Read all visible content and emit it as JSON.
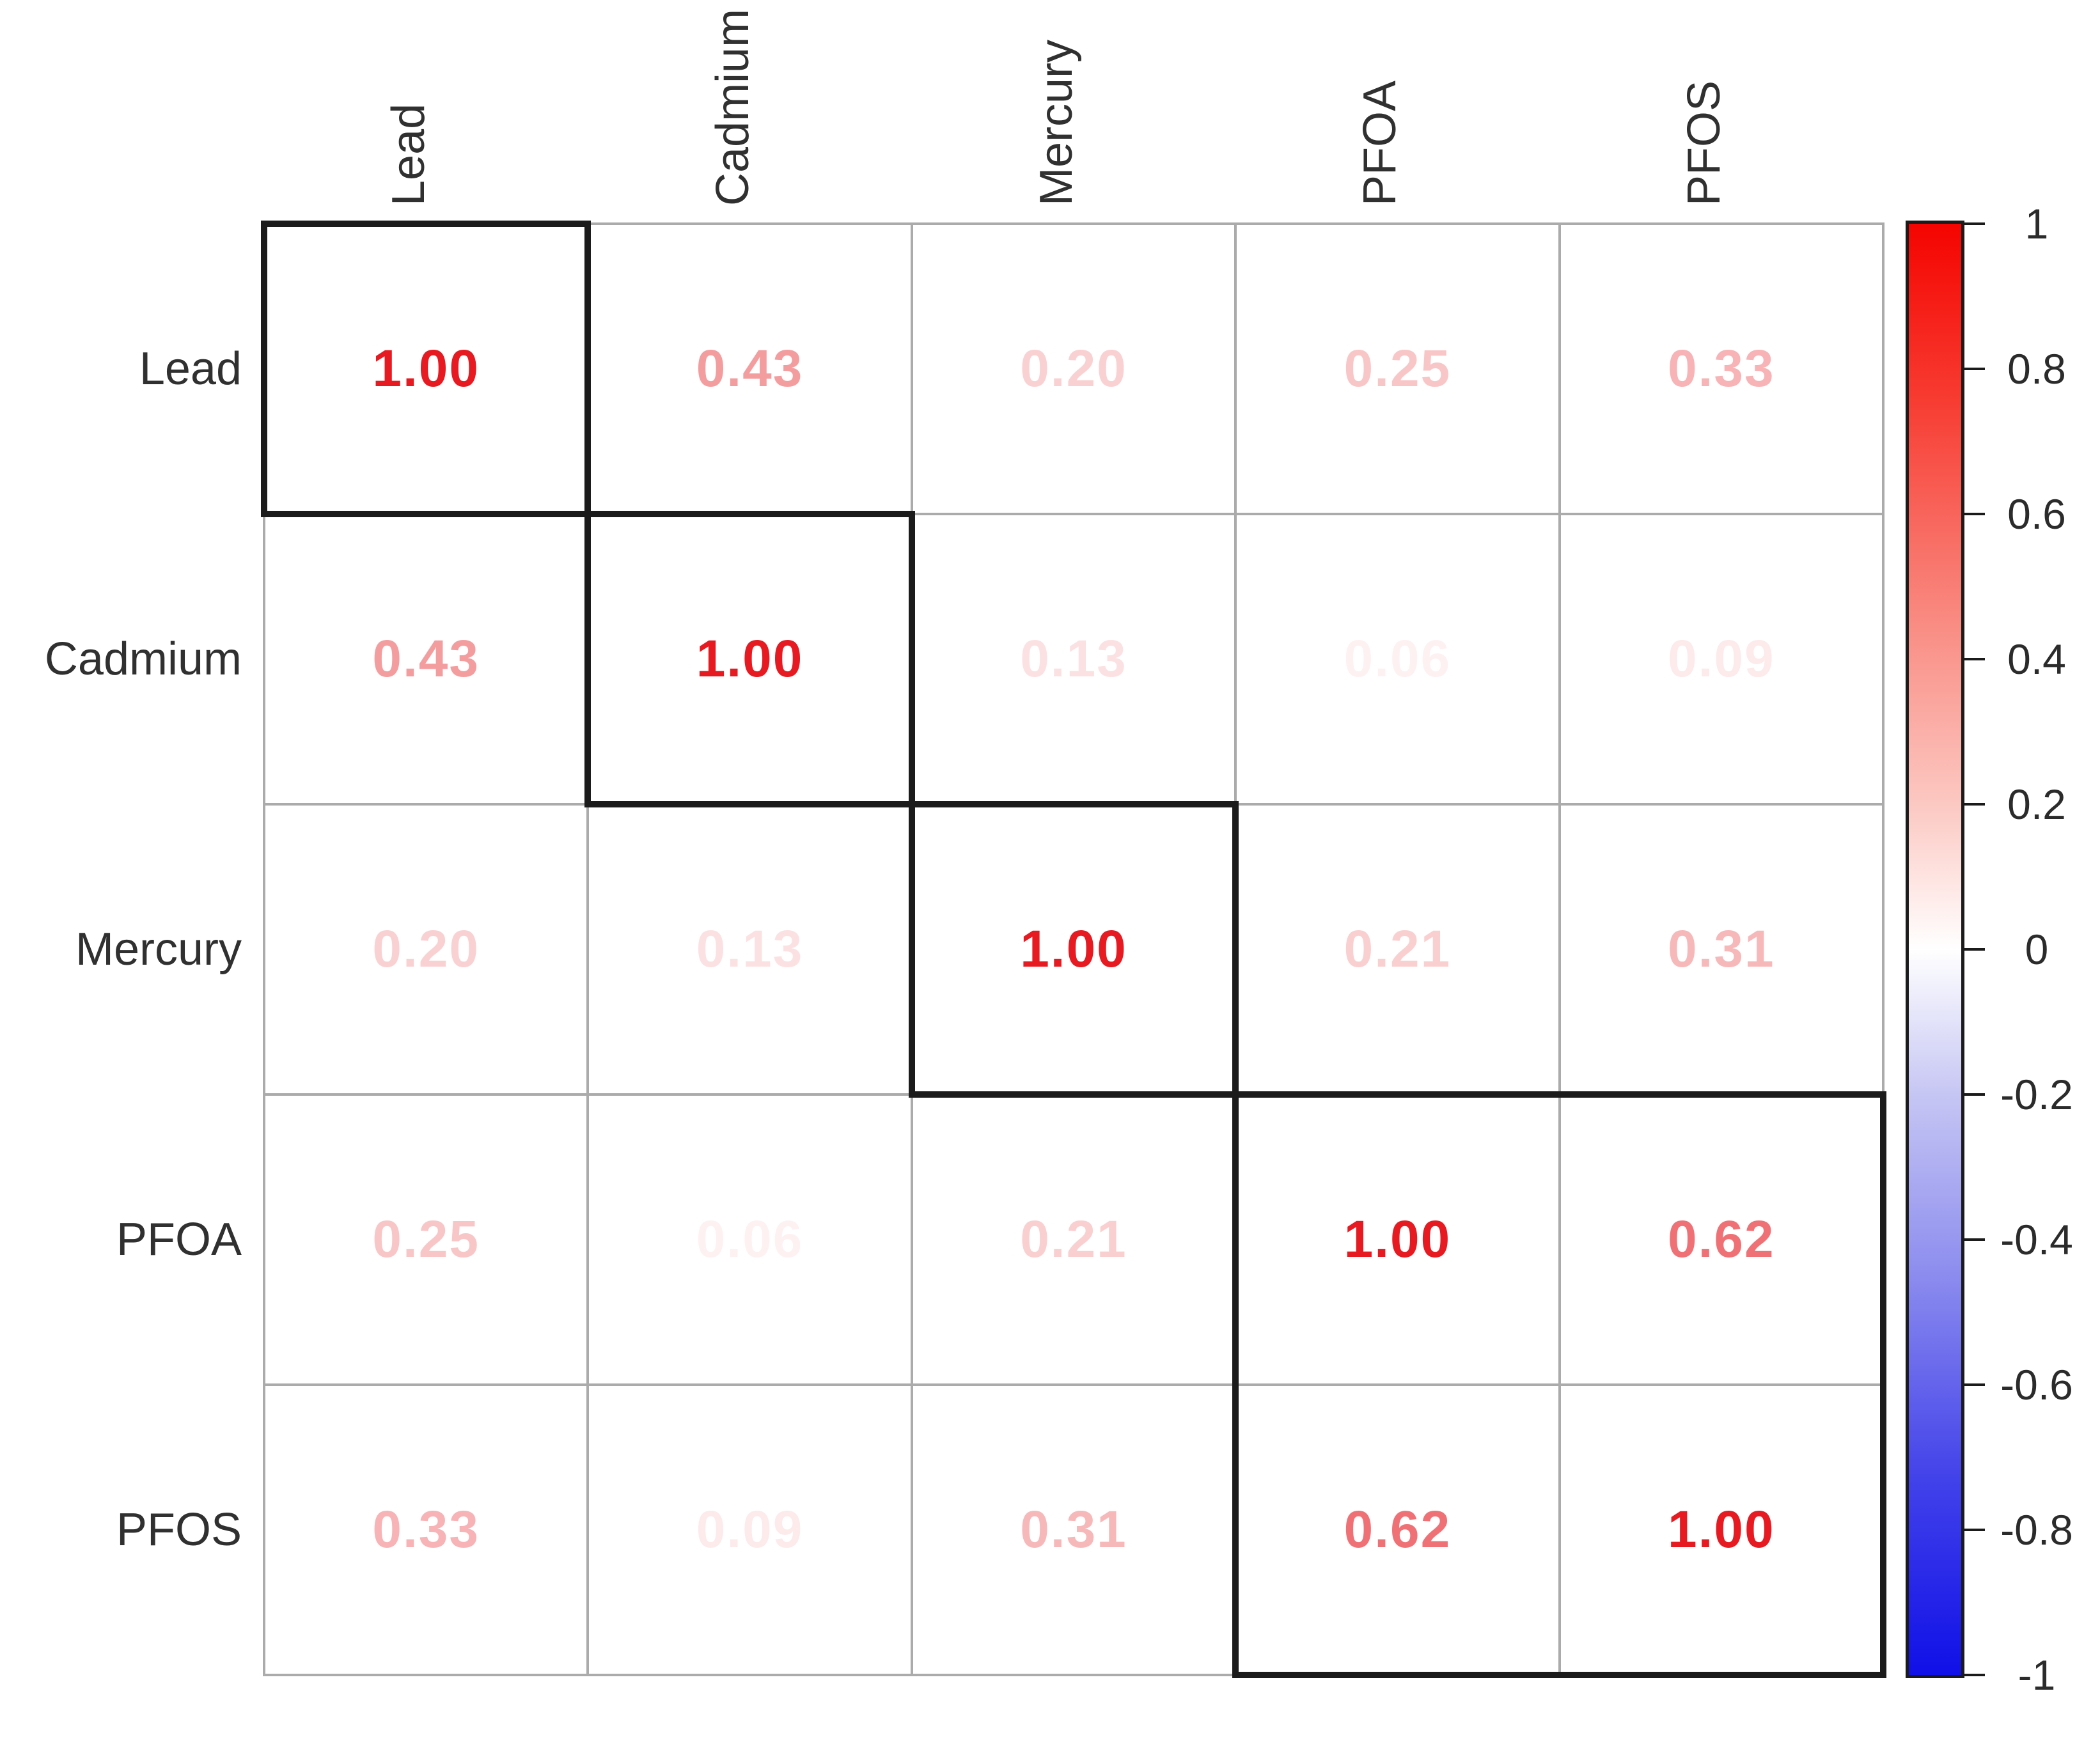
{
  "chart_data": {
    "type": "heatmap",
    "title": "",
    "subtitle": "",
    "variables": [
      "Lead",
      "Cadmium",
      "Mercury",
      "PFOA",
      "PFOS"
    ],
    "matrix": [
      [
        1.0,
        0.43,
        0.2,
        0.25,
        0.33
      ],
      [
        0.43,
        1.0,
        0.13,
        0.06,
        0.09
      ],
      [
        0.2,
        0.13,
        1.0,
        0.21,
        0.31
      ],
      [
        0.25,
        0.06,
        0.21,
        1.0,
        0.62
      ],
      [
        0.33,
        0.09,
        0.31,
        0.62,
        1.0
      ]
    ],
    "matrix_display": [
      [
        "1.00",
        "0.43",
        "0.20",
        "0.25",
        "0.33"
      ],
      [
        "0.43",
        "1.00",
        "0.13",
        "0.06",
        "0.09"
      ],
      [
        "0.20",
        "0.13",
        "1.00",
        "0.21",
        "0.31"
      ],
      [
        "0.25",
        "0.06",
        "0.21",
        "1.00",
        "0.62"
      ],
      [
        "0.33",
        "0.09",
        "0.31",
        "0.62",
        "1.00"
      ]
    ],
    "value_range": [
      -1,
      1
    ],
    "number_base_color": "#e61a20",
    "label_color": "#303030",
    "grid_line_color": "#ababab",
    "cluster_box_color": "#1b1b1b",
    "cluster_boxes": [
      [
        0,
        0,
        0,
        0
      ],
      [
        1,
        1,
        1,
        1
      ],
      [
        2,
        2,
        2,
        2
      ],
      [
        3,
        3,
        4,
        4
      ]
    ],
    "colorbar": {
      "orientation": "vertical",
      "position": "right",
      "max_color": "#f50400",
      "mid_color": "#ffffff",
      "min_color": "#1010e8",
      "tick_values": [
        1,
        0.8,
        0.6,
        0.4,
        0.2,
        0,
        -0.2,
        -0.4,
        -0.6,
        -0.8,
        -1
      ],
      "tick_labels": [
        "1",
        "0.8",
        "0.6",
        "0.4",
        "0.2",
        "0",
        "-0.2",
        "-0.4",
        "-0.6",
        "-0.8",
        "-1"
      ]
    }
  }
}
